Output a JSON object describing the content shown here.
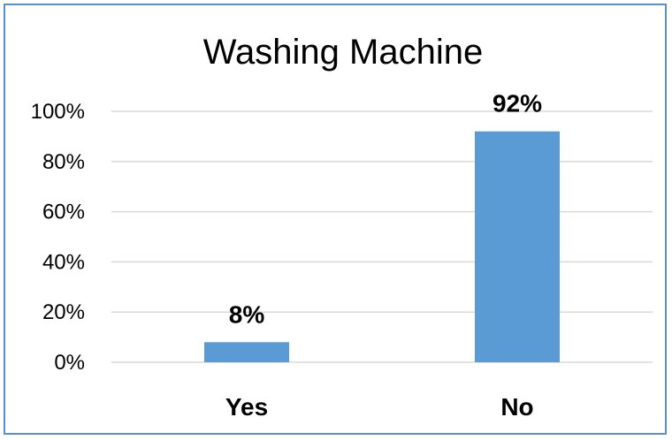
{
  "chart_data": {
    "type": "bar",
    "title": "Washing Machine",
    "categories": [
      "Yes",
      "No"
    ],
    "values": [
      8,
      92
    ],
    "data_labels": [
      "8%",
      "92%"
    ],
    "y_ticks": [
      "0%",
      "20%",
      "40%",
      "60%",
      "80%",
      "100%"
    ],
    "ylim": [
      0,
      100
    ],
    "xlabel": "",
    "ylabel": "",
    "grid": true,
    "legend": "none",
    "bar_color": "#5b9bd5",
    "grid_color": "#d9d9d9",
    "border_color": "#5b8fc7"
  }
}
